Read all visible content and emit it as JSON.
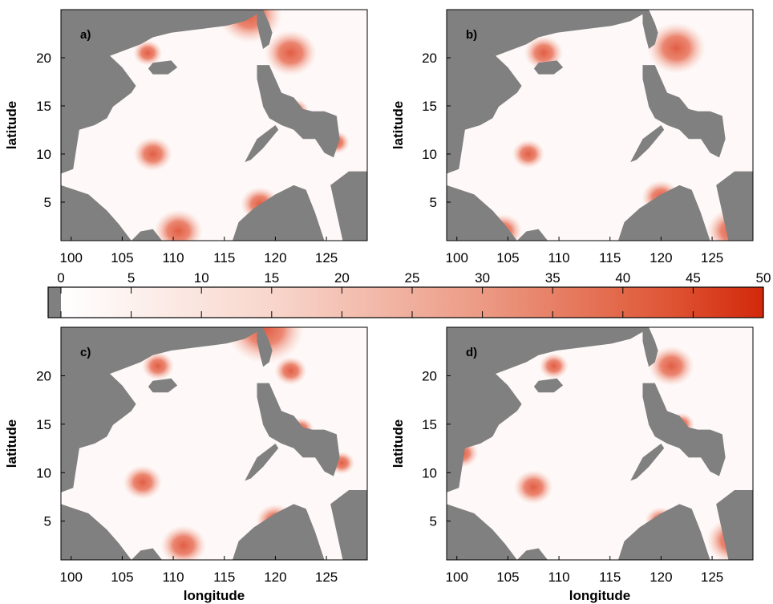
{
  "axes": {
    "xlabel": "longitude",
    "ylabel": "latitude",
    "xticks": [
      "100",
      "105",
      "110",
      "115",
      "120",
      "125"
    ],
    "yticks": [
      "20",
      "15",
      "10",
      "5"
    ],
    "x_range": [
      99,
      129
    ],
    "y_range": [
      1,
      25
    ]
  },
  "panels": [
    {
      "id": "a",
      "label": "a)",
      "hotspots": [
        [
          121.5,
          20.5,
          1.6
        ],
        [
          117.5,
          24.5,
          2.0
        ],
        [
          108,
          10,
          1.2
        ],
        [
          110.5,
          2,
          1.5
        ],
        [
          107.5,
          20.5,
          0.9
        ],
        [
          118.5,
          4.8,
          1.2
        ],
        [
          122,
          14.5,
          0.8
        ],
        [
          126,
          11.2,
          0.8
        ]
      ]
    },
    {
      "id": "b",
      "label": "b)",
      "hotspots": [
        [
          121.5,
          21,
          1.8
        ],
        [
          108.5,
          20.5,
          1.2
        ],
        [
          107,
          10,
          1.0
        ],
        [
          120,
          5.5,
          1.2
        ],
        [
          122,
          14,
          0.7
        ],
        [
          127,
          2,
          1.6
        ],
        [
          104.5,
          2,
          1.2
        ]
      ]
    },
    {
      "id": "c",
      "label": "c)",
      "hotspots": [
        [
          119,
          24.8,
          2.4
        ],
        [
          108.5,
          21,
          1.0
        ],
        [
          107,
          9,
          1.2
        ],
        [
          111,
          2.5,
          1.4
        ],
        [
          121.5,
          20.5,
          1.0
        ],
        [
          122.5,
          14.5,
          0.8
        ],
        [
          120,
          5,
          1.2
        ],
        [
          126.5,
          11,
          0.8
        ]
      ]
    },
    {
      "id": "d",
      "label": "d)",
      "hotspots": [
        [
          121,
          21,
          1.4
        ],
        [
          109.5,
          21,
          0.9
        ],
        [
          107.5,
          8.5,
          1.2
        ],
        [
          100.5,
          12,
          1.0
        ],
        [
          122,
          15,
          0.8
        ],
        [
          120,
          5,
          1.0
        ],
        [
          127,
          3,
          1.6
        ]
      ]
    }
  ],
  "colorbar": {
    "ticks": [
      "0",
      "5",
      "10",
      "15",
      "20",
      "25",
      "30",
      "35",
      "40",
      "45",
      "50"
    ],
    "range": [
      0,
      50
    ],
    "low_color": "#ffffff",
    "high_color": "#d42a0c",
    "land_color": "#808080"
  },
  "colors": {
    "land": "#808080",
    "sea": "#ffffff",
    "hot": "#d8300f"
  }
}
